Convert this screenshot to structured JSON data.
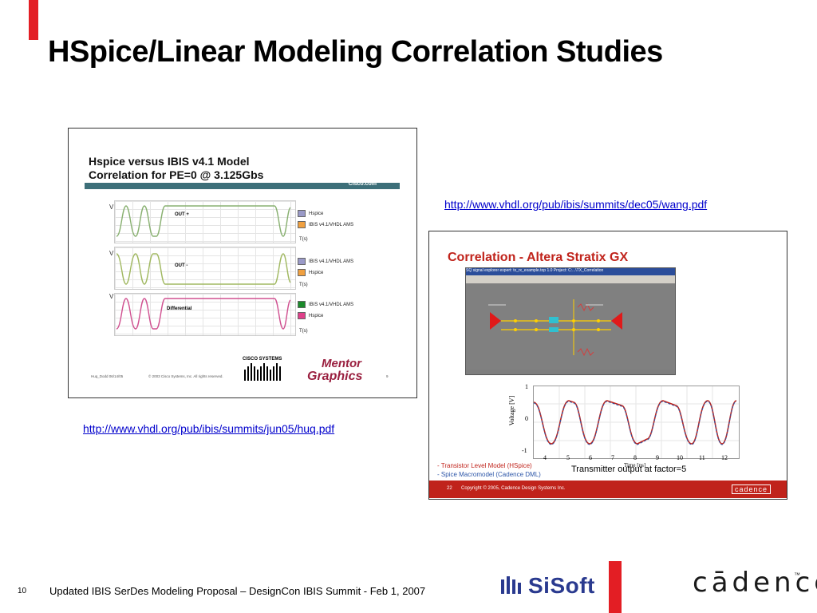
{
  "title": "HSpice/Linear Modeling Correlation Studies",
  "links": {
    "right": "http://www.vhdl.org/pub/ibis/summits/dec05/wang.pdf",
    "left": "http://www.vhdl.org/pub/ibis/summits/jun05/huq.pdf"
  },
  "left_slide": {
    "title_line1": "Hspice versus IBIS v4.1 Model",
    "title_line2": "Correlation for PE=0 @ 3.125Gbs",
    "brand": "Cisco.com",
    "plots": [
      {
        "label": "OUT +",
        "legend": [
          "Hspice",
          "IBIS v4.1/VHDL AMS"
        ],
        "colors": [
          "#9a9ac8",
          "#f0a040"
        ]
      },
      {
        "label": "OUT -",
        "legend": [
          "IBIS v4.1/VHDL AMS",
          "Hspice"
        ],
        "colors": [
          "#9a9ac8",
          "#f0a040"
        ]
      },
      {
        "label": "Differential",
        "legend": [
          "IBIS v4.1/VHDL AMS",
          "Hspice"
        ],
        "colors": [
          "#1a8a2a",
          "#e0408a"
        ]
      }
    ],
    "axis_unit": "T(s)",
    "v_label": "V",
    "foot_left": "Huq_Dodd 06/14/05",
    "foot_mid": "© 2003 Cisco Systems, Inc. All rights reserved.",
    "foot_page": "9",
    "cisco_logo": "CISCO SYSTEMS",
    "mentor_logo": "Mentor Graphics"
  },
  "right_slide": {
    "title": "Correlation - Altera Stratix GX",
    "window_title": "SQ signal explorer expert: tx_rx_example.top 1.0  Project: C:...\\TX_Correlation",
    "y_label": "Voltage [V]",
    "x_label": "Time [ns]",
    "y_ticks": [
      "1",
      "0",
      "-1"
    ],
    "x_ticks": [
      "4",
      "5",
      "6",
      "7",
      "8",
      "9",
      "10",
      "11",
      "12"
    ],
    "legend1": "- Transistor Level Model (HSpice)",
    "legend2": "- Spice Macromodel (Cadence DML)",
    "caption": "Transmitter output at factor=5",
    "foot_page": "22",
    "foot_copyright": "Copyright © 2005, Cadence Design Systems Inc.",
    "foot_logo": "cadence"
  },
  "footer": {
    "page": "10",
    "text": "Updated IBIS SerDes Modeling Proposal – DesignCon IBIS Summit - Feb 1, 2007",
    "sisoft": "SiSoft",
    "cadence": "cādence",
    "tm": "™"
  }
}
